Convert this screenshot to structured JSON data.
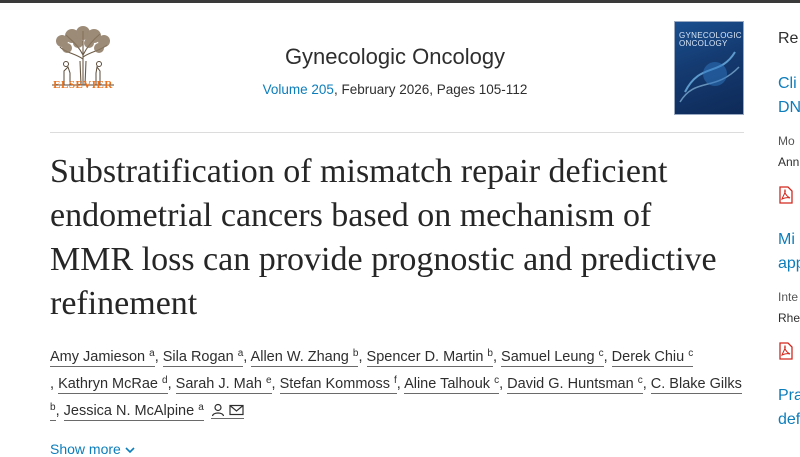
{
  "header": {
    "publisher": "ELSEVIER",
    "journal_title": "Gynecologic Oncology",
    "volume_link": "Volume 205",
    "issue_details": ", February 2026, Pages 105-112",
    "cover_text_1": "GYNECOLOGIC",
    "cover_text_2": "ONCOLOGY"
  },
  "article": {
    "title": "Substratification of mismatch repair deficient endometrial cancers based on mechanism of MMR loss can provide prognostic and predictive refinement",
    "authors": [
      {
        "name": "Amy Jamieson",
        "sup": "a"
      },
      {
        "name": "Sila Rogan",
        "sup": "a"
      },
      {
        "name": "Allen W. Zhang",
        "sup": "b"
      },
      {
        "name": "Spencer D. Martin",
        "sup": "b"
      },
      {
        "name": "Samuel Leung",
        "sup": "c"
      },
      {
        "name": "Derek Chiu",
        "sup": "c"
      },
      {
        "name": "Kathryn McRae",
        "sup": "d"
      },
      {
        "name": "Sarah J. Mah",
        "sup": "e"
      },
      {
        "name": "Stefan Kommoss",
        "sup": "f"
      },
      {
        "name": "Aline Talhouk",
        "sup": "c"
      },
      {
        "name": "David G. Huntsman",
        "sup": "c"
      },
      {
        "name": "C. Blake Gilks",
        "sup": "b"
      },
      {
        "name": "Jessica N. McAlpine",
        "sup": "a"
      }
    ],
    "show_more": "Show more"
  },
  "sidebar": {
    "heading": "Re",
    "items": [
      {
        "line1": "Cli",
        "line2": "DN",
        "meta": "Mo",
        "meta2": "Ann"
      },
      {
        "line1": "Mi",
        "line2": "app",
        "meta": "Inte",
        "meta2": "Rhe"
      },
      {
        "line1": "Pra",
        "line2": "def"
      }
    ]
  },
  "colors": {
    "accent_link": "#0c7dbb",
    "publisher_orange": "#e9711c",
    "pdf_red": "#d2281e"
  }
}
